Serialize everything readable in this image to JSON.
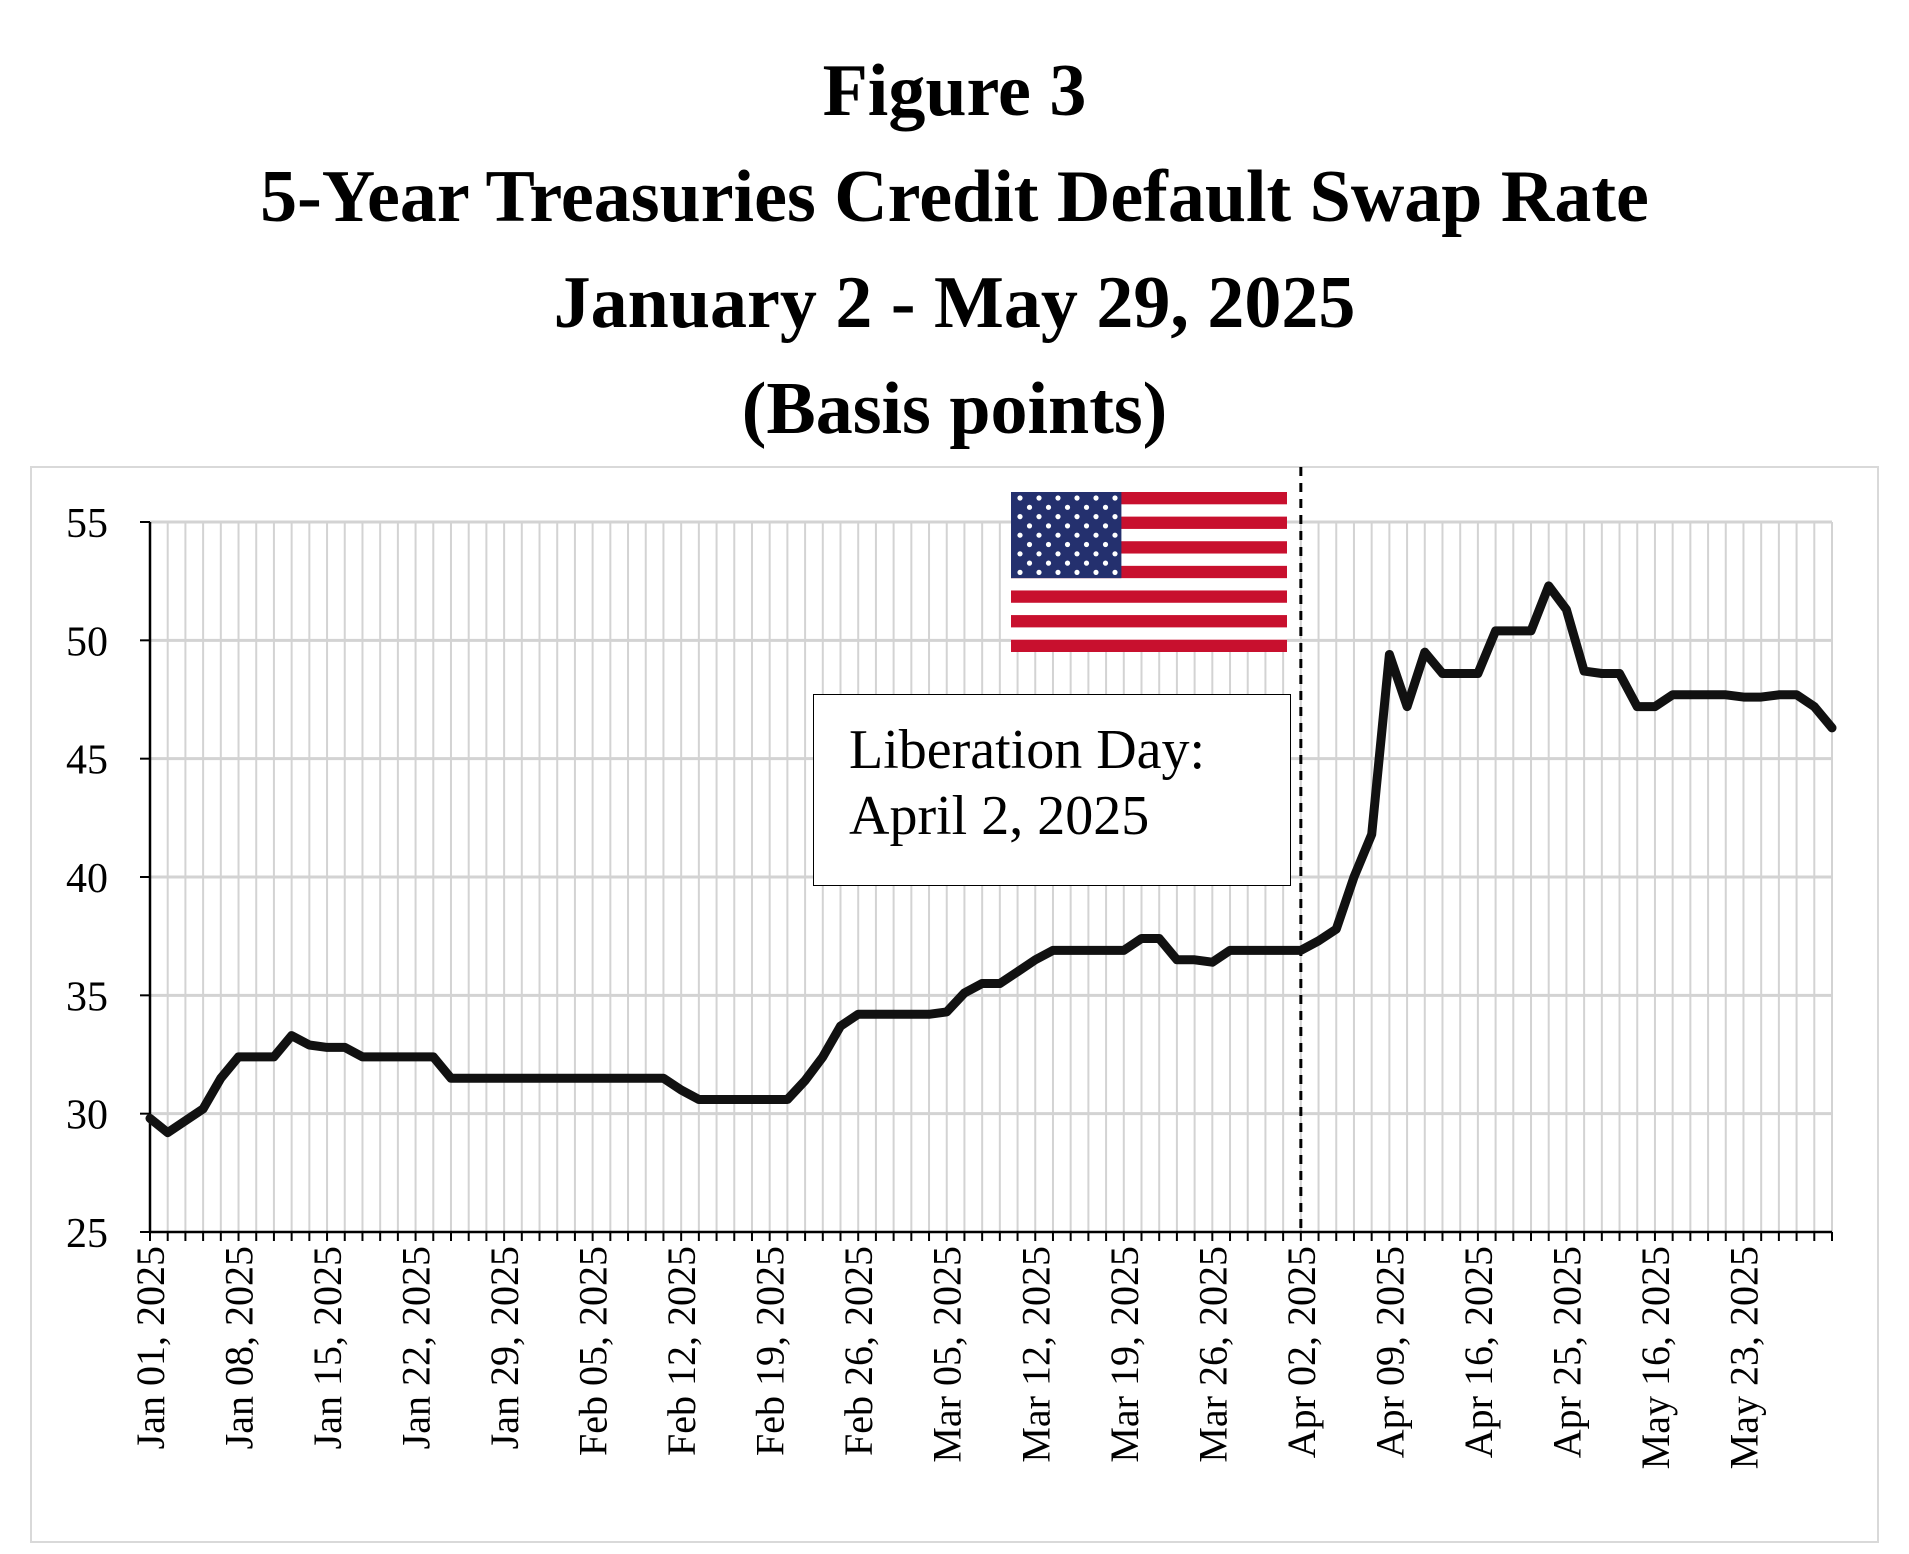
{
  "titles": {
    "figure": "Figure 3",
    "main": "5-Year Treasuries Credit Default Swap Rate",
    "range": "January 2 - May 29, 2025",
    "unit": "(Basis points)"
  },
  "annotation": {
    "line1": "Liberation Day:",
    "line2": "April 2, 2025"
  },
  "colors": {
    "line": "#111111",
    "grid": "#d3d3d3",
    "flag_red": "#c8102e",
    "flag_blue": "#24306e"
  },
  "icons": [
    "us-flag-icon"
  ],
  "chart_data": {
    "type": "line",
    "ylim": [
      25,
      55
    ],
    "yticks": [
      25,
      30,
      35,
      40,
      45,
      50,
      55
    ],
    "grid": true,
    "x_tick_labels": [
      {
        "label": "Jan 01, 2025",
        "index": 0
      },
      {
        "label": "Jan 08, 2025",
        "index": 5
      },
      {
        "label": "Jan 15, 2025",
        "index": 10
      },
      {
        "label": "Jan 22, 2025",
        "index": 15
      },
      {
        "label": "Jan 29, 2025",
        "index": 20
      },
      {
        "label": "Feb 05, 2025",
        "index": 25
      },
      {
        "label": "Feb 12, 2025",
        "index": 30
      },
      {
        "label": "Feb 19, 2025",
        "index": 35
      },
      {
        "label": "Feb 26, 2025",
        "index": 40
      },
      {
        "label": "Mar 05, 2025",
        "index": 45
      },
      {
        "label": "Mar 12, 2025",
        "index": 50
      },
      {
        "label": "Mar 19, 2025",
        "index": 55
      },
      {
        "label": "Mar 26, 2025",
        "index": 60
      },
      {
        "label": "Apr 02, 2025",
        "index": 65
      },
      {
        "label": "Apr 09, 2025",
        "index": 70
      },
      {
        "label": "Apr 16, 2025",
        "index": 75
      },
      {
        "label": "Apr 25, 2025",
        "index": 80
      },
      {
        "label": "May 16, 2025",
        "index": 85
      },
      {
        "label": "May 23, 2025",
        "index": 90
      }
    ],
    "event_index": 65,
    "series": [
      {
        "values": [
          29.8,
          29.2,
          29.7,
          30.2,
          31.5,
          32.4,
          32.4,
          32.4,
          33.3,
          32.9,
          32.8,
          32.8,
          32.4,
          32.4,
          32.4,
          32.4,
          32.4,
          31.5,
          31.5,
          31.5,
          31.5,
          31.5,
          31.5,
          31.5,
          31.5,
          31.5,
          31.5,
          31.5,
          31.5,
          31.5,
          31.0,
          30.6,
          30.6,
          30.6,
          30.6,
          30.6,
          30.6,
          31.4,
          32.4,
          33.7,
          34.2,
          34.2,
          34.2,
          34.2,
          34.2,
          34.3,
          35.1,
          35.5,
          35.5,
          36.0,
          36.5,
          36.9,
          36.9,
          36.9,
          36.9,
          36.9,
          37.4,
          37.4,
          36.5,
          36.5,
          36.4,
          36.9,
          36.9,
          36.9,
          36.9,
          36.9,
          37.3,
          37.8,
          40.0,
          41.8,
          49.4,
          47.2,
          49.5,
          48.6,
          48.6,
          48.6,
          50.4,
          50.4,
          50.4,
          52.3,
          51.3,
          48.7,
          48.6,
          48.6,
          47.2,
          47.2,
          47.7,
          47.7,
          47.7,
          47.7,
          47.6,
          47.6,
          47.7,
          47.7,
          47.2,
          46.3
        ]
      }
    ]
  }
}
